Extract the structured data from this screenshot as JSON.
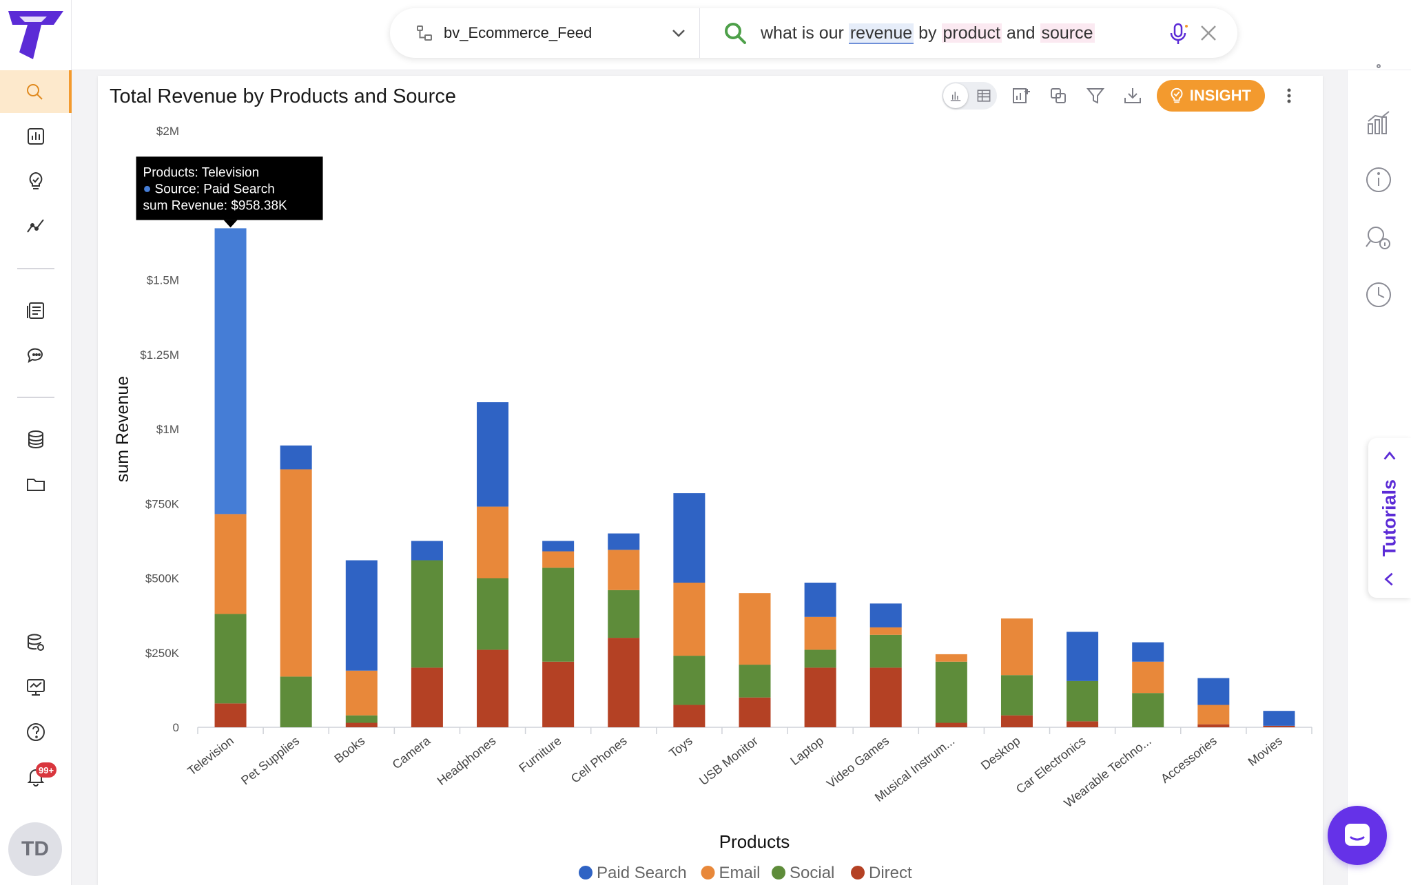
{
  "datasource": {
    "label": "bv_Ecommerce_Feed"
  },
  "query": {
    "parts": [
      "what is our ",
      "revenue",
      " by ",
      "product",
      " and ",
      "source"
    ]
  },
  "card": {
    "title": "Total Revenue by Products and Source",
    "insight_label": "INSIGHT"
  },
  "tooltip": {
    "products_label": "Products:",
    "products_value": "Television",
    "source_label": "Source:",
    "source_value": "Paid Search",
    "metric_label": "sum Revenue:",
    "metric_value": "$958.38K"
  },
  "nav": {
    "notification_count": "99+",
    "avatar_initials": "TD"
  },
  "tutorials": {
    "label": "Tutorials"
  },
  "colors": {
    "accent": "#f39a2e",
    "purple": "#5b2bd6",
    "Paid Search": "#2f63c4",
    "Paid Search Highlight": "#457dd6",
    "Email": "#e8883a",
    "Social": "#5e8c3a",
    "Direct": "#b44124"
  },
  "chart_data": {
    "type": "bar",
    "stacked": true,
    "xlabel": "Products",
    "ylabel": "sum Revenue",
    "ylim": [
      0,
      2000000
    ],
    "y_ticks": [
      {
        "value": 0,
        "label": "0"
      },
      {
        "value": 250000,
        "label": "$250K"
      },
      {
        "value": 500000,
        "label": "$500K"
      },
      {
        "value": 750000,
        "label": "$750K"
      },
      {
        "value": 1000000,
        "label": "$1M"
      },
      {
        "value": 1250000,
        "label": "$1.25M"
      },
      {
        "value": 1500000,
        "label": "$1.5M"
      },
      {
        "value": 2000000,
        "label": "$2M"
      }
    ],
    "categories": [
      "Television",
      "Pet Supplies",
      "Books",
      "Camera",
      "Headphones",
      "Furniture",
      "Cell Phones",
      "Toys",
      "USB Monitor",
      "Laptop",
      "Video Games",
      "Musical Instrum...",
      "Desktop",
      "Car Electronics",
      "Wearable Techno...",
      "Accessories",
      "Movies"
    ],
    "series": [
      {
        "name": "Direct",
        "values": [
          80000,
          0,
          15000,
          200000,
          260000,
          220000,
          300000,
          75000,
          100000,
          200000,
          200000,
          15000,
          40000,
          20000,
          0,
          10000,
          5000
        ]
      },
      {
        "name": "Social",
        "values": [
          300000,
          170000,
          25000,
          360000,
          240000,
          315000,
          160000,
          165000,
          110000,
          60000,
          110000,
          205000,
          135000,
          135000,
          115000,
          0,
          0
        ]
      },
      {
        "name": "Email",
        "values": [
          335000,
          695000,
          150000,
          0,
          240000,
          55000,
          135000,
          245000,
          240000,
          110000,
          25000,
          25000,
          190000,
          0,
          105000,
          65000,
          0
        ]
      },
      {
        "name": "Paid Search",
        "values": [
          958380,
          80000,
          370000,
          65000,
          350000,
          35000,
          55000,
          300000,
          0,
          115000,
          80000,
          0,
          0,
          165000,
          65000,
          90000,
          50000
        ]
      }
    ],
    "legend": [
      "Paid Search",
      "Email",
      "Social",
      "Direct"
    ],
    "legend_position": "bottom",
    "highlight": {
      "category": "Television",
      "series": "Paid Search"
    }
  }
}
